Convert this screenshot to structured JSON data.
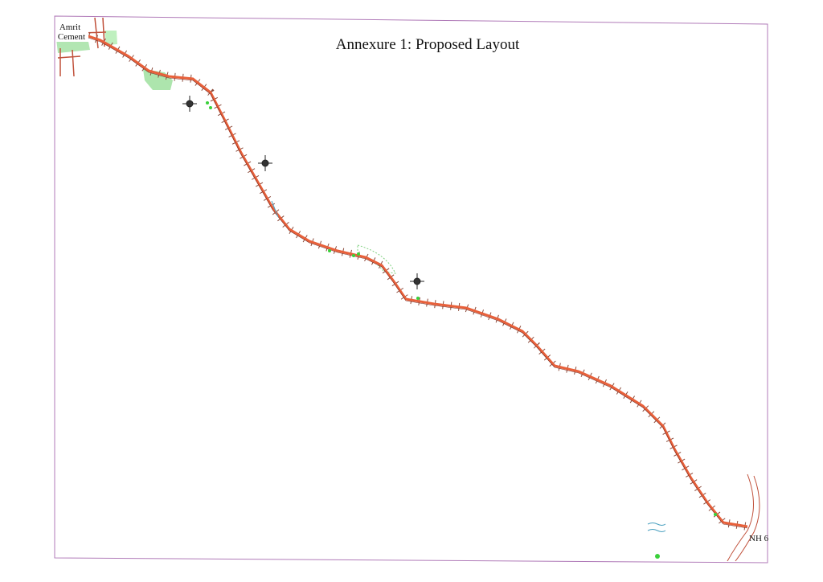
{
  "title": "Annexure 1: Proposed Layout",
  "labels": {
    "start": [
      "Amrit",
      "Cement"
    ],
    "end": "NH 6"
  }
}
